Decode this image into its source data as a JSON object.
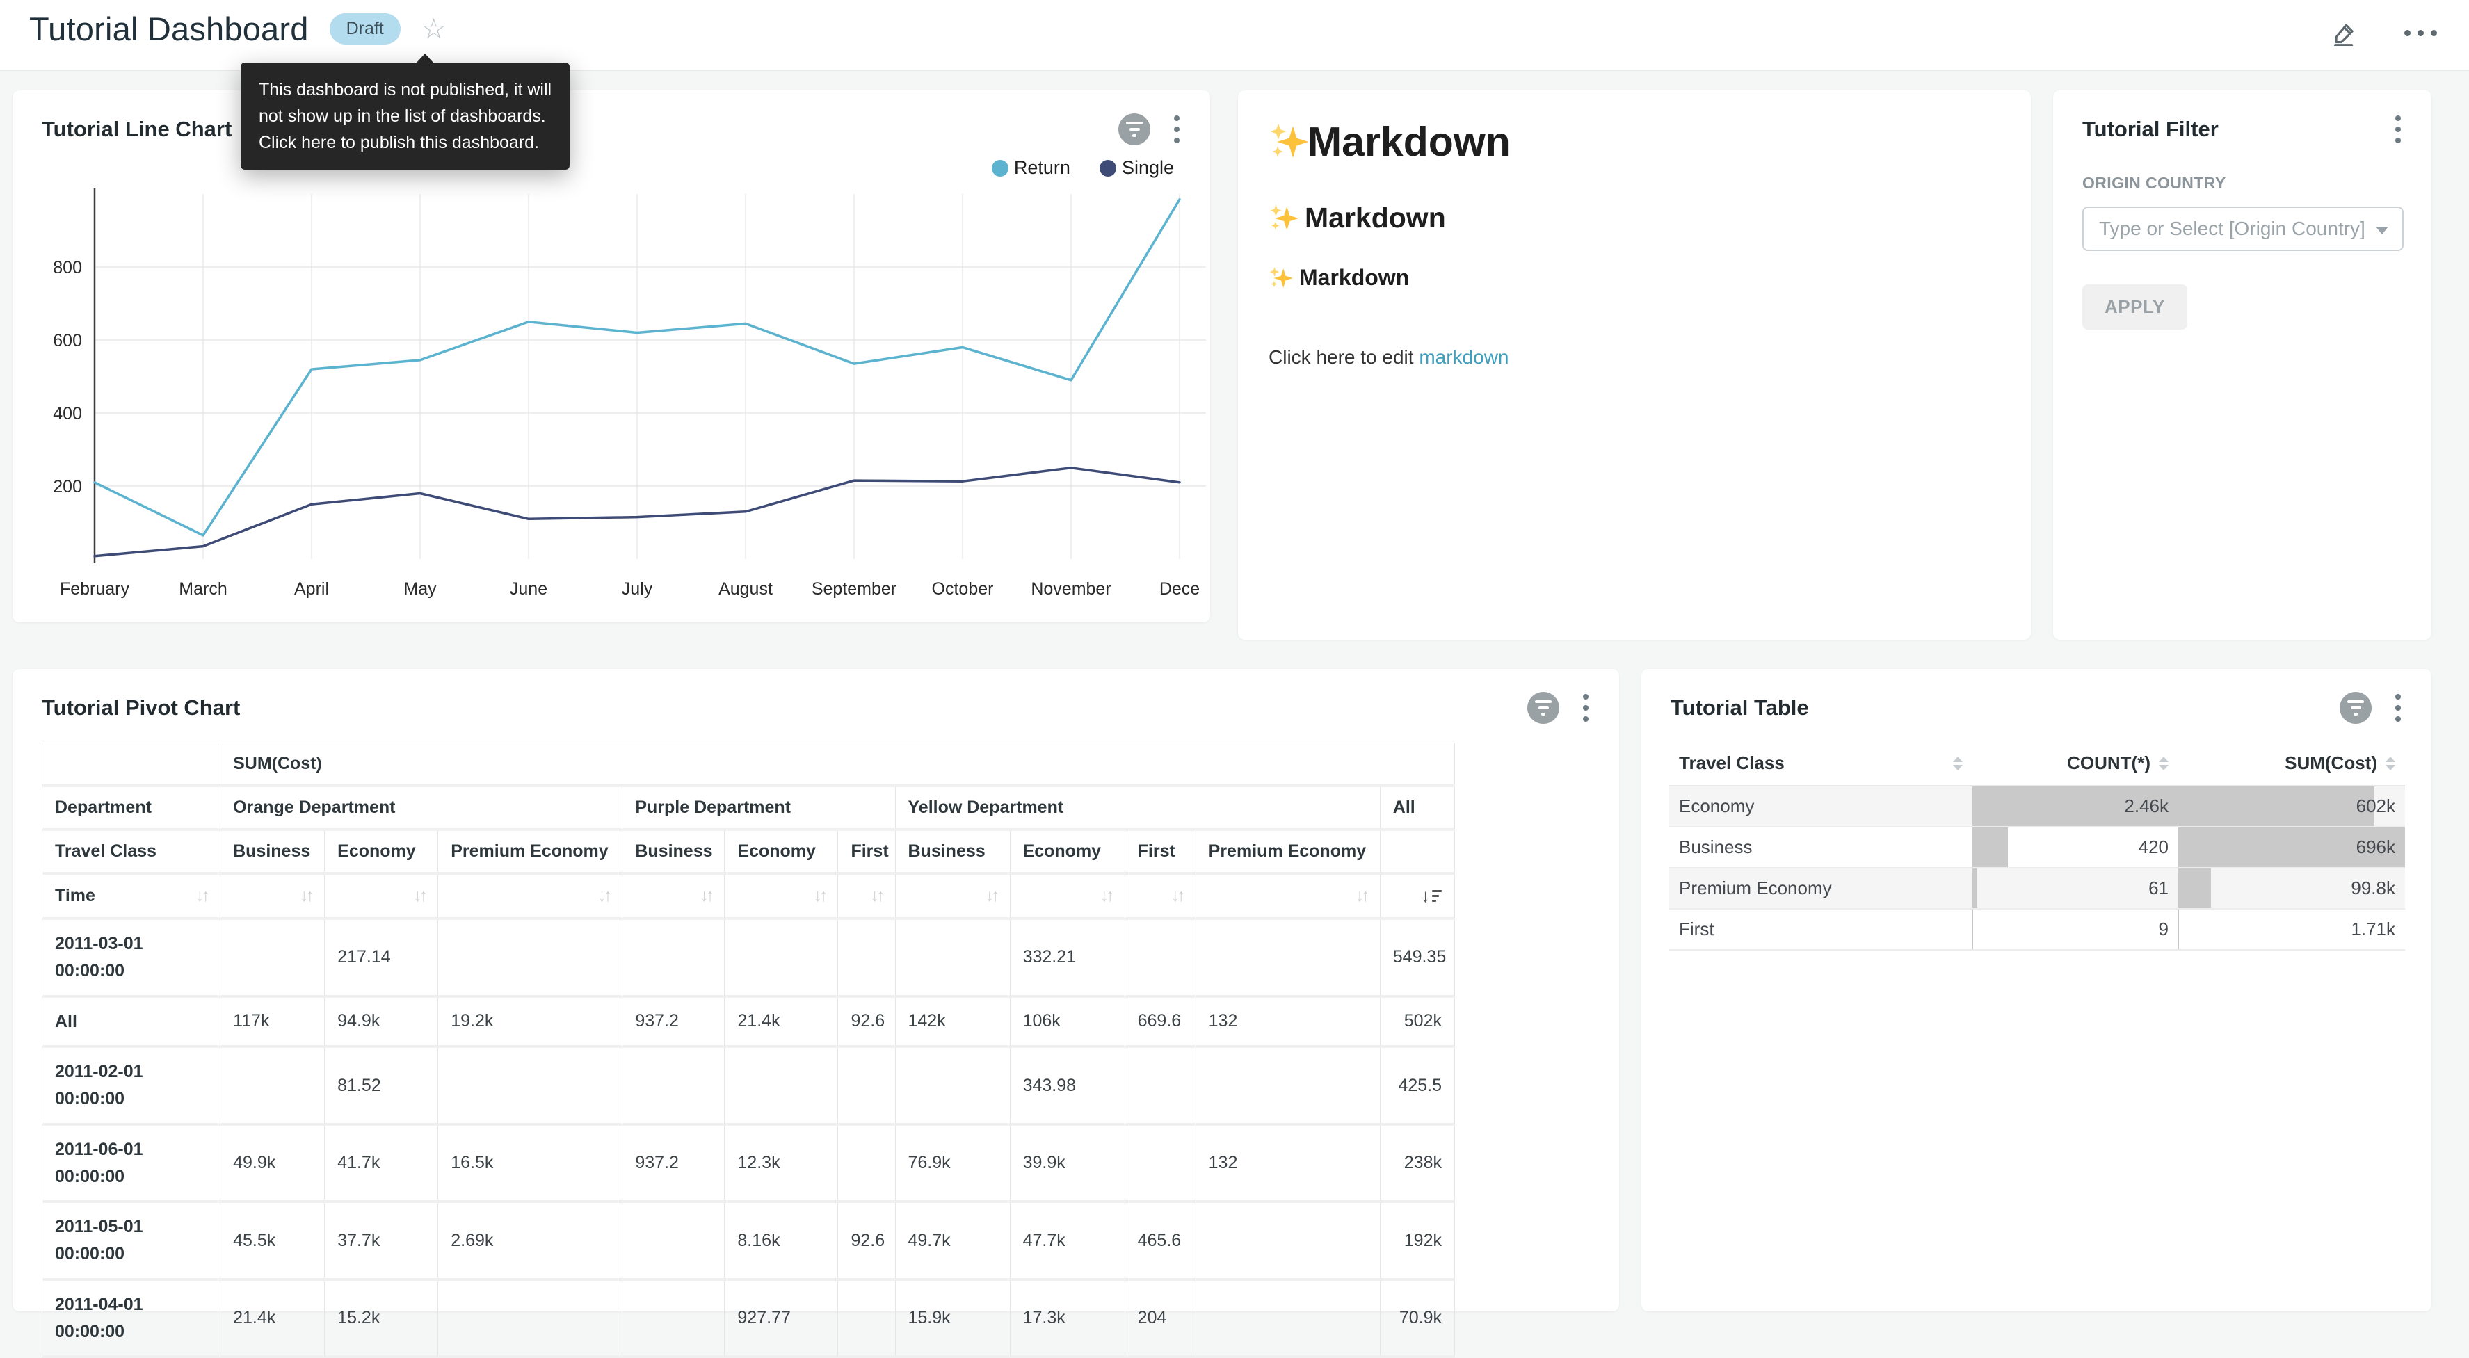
{
  "header": {
    "title": "Tutorial Dashboard",
    "badge": "Draft",
    "tooltip": "This dashboard is not published, it will\nnot show up in the list of dashboards.\nClick here to publish this dashboard."
  },
  "icons": {
    "edit": "pencil-icon",
    "more": "ellipsis-icon",
    "favorite": "star-icon",
    "filter_applied": "filter-applied-badge-icon",
    "menu": "kebab-menu-icon",
    "dropdown": "chevron-down-icon",
    "sort": "sort-arrows-icon",
    "sparkles": "sparkles-icon"
  },
  "chart_data": {
    "type": "line",
    "title": "Tutorial Line Chart",
    "x": [
      "February",
      "March",
      "April",
      "May",
      "June",
      "July",
      "August",
      "September",
      "October",
      "November",
      "Dece"
    ],
    "series": [
      {
        "name": "Return",
        "color": "#5bb3cf",
        "values": [
          210,
          65,
          520,
          545,
          650,
          620,
          645,
          535,
          580,
          490,
          985
        ]
      },
      {
        "name": "Single",
        "color": "#3e4b77",
        "values": [
          8,
          35,
          150,
          180,
          110,
          115,
          130,
          215,
          213,
          250,
          210
        ]
      }
    ],
    "ylim": [
      0,
      1000
    ],
    "yticks": [
      200,
      400,
      600,
      800
    ],
    "grid": true,
    "legend_position": "top-right"
  },
  "cards": {
    "line_chart": {
      "title": "Tutorial Line Chart"
    },
    "markdown": {
      "sparkle": "✨",
      "h1": "Markdown",
      "h2": "Markdown",
      "h3": "Markdown",
      "body_prefix": "Click here to edit ",
      "link": "markdown",
      "link_color": "#3e9fbf"
    },
    "filter": {
      "title": "Tutorial Filter",
      "field_label": "ORIGIN COUNTRY",
      "placeholder": "Type or Select [Origin Country]",
      "apply": "APPLY"
    },
    "pivot": {
      "title": "Tutorial Pivot Chart",
      "measure": "SUM(Cost)",
      "dim_row_label": "Department",
      "class_row_label": "Travel Class",
      "time_row_label": "Time",
      "groups": [
        {
          "name": "Orange Department",
          "classes": [
            "Business",
            "Economy",
            "Premium Economy"
          ]
        },
        {
          "name": "Purple Department",
          "classes": [
            "Business",
            "Economy",
            "First"
          ]
        },
        {
          "name": "Yellow Department",
          "classes": [
            "Business",
            "Economy",
            "First",
            "Premium Economy"
          ]
        },
        {
          "name": "All",
          "classes": [
            ""
          ]
        }
      ],
      "rows": [
        {
          "time": "2011-03-01 00:00:00",
          "values": [
            "",
            "217.14",
            "",
            "",
            "",
            "",
            "",
            "332.21",
            "",
            "",
            "549.35"
          ]
        },
        {
          "time": "All",
          "values": [
            "117k",
            "94.9k",
            "19.2k",
            "937.2",
            "21.4k",
            "92.6",
            "142k",
            "106k",
            "669.6",
            "132",
            "502k"
          ]
        },
        {
          "time": "2011-02-01 00:00:00",
          "values": [
            "",
            "81.52",
            "",
            "",
            "",
            "",
            "",
            "343.98",
            "",
            "",
            "425.5"
          ]
        },
        {
          "time": "2011-06-01 00:00:00",
          "values": [
            "49.9k",
            "41.7k",
            "16.5k",
            "937.2",
            "12.3k",
            "",
            "76.9k",
            "39.9k",
            "",
            "132",
            "238k"
          ]
        },
        {
          "time": "2011-05-01 00:00:00",
          "values": [
            "45.5k",
            "37.7k",
            "2.69k",
            "",
            "8.16k",
            "92.6",
            "49.7k",
            "47.7k",
            "465.6",
            "",
            "192k"
          ]
        },
        {
          "time": "2011-04-01 00:00:00",
          "values": [
            "21.4k",
            "15.2k",
            "",
            "",
            "927.77",
            "",
            "15.9k",
            "17.3k",
            "204",
            "",
            "70.9k"
          ]
        }
      ]
    },
    "table": {
      "title": "Tutorial Table",
      "columns": [
        "Travel Class",
        "COUNT(*)",
        "SUM(Cost)"
      ],
      "bar_color": "#c9c9c9",
      "rows": [
        {
          "travel_class": "Economy",
          "count_label": "2.46k",
          "count": 2460,
          "sum_label": "602k",
          "sum": 602000
        },
        {
          "travel_class": "Business",
          "count_label": "420",
          "count": 420,
          "sum_label": "696k",
          "sum": 696000
        },
        {
          "travel_class": "Premium Economy",
          "count_label": "61",
          "count": 61,
          "sum_label": "99.8k",
          "sum": 99800
        },
        {
          "travel_class": "First",
          "count_label": "9",
          "count": 9,
          "sum_label": "1.71k",
          "sum": 1710
        }
      ]
    }
  }
}
